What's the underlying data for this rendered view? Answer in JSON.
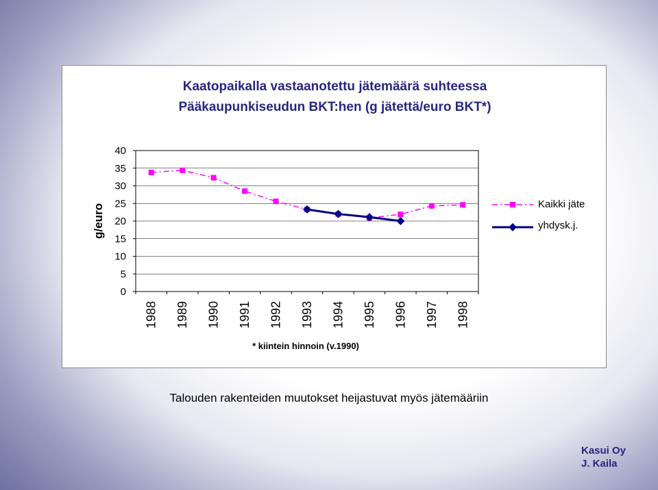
{
  "chart_data": {
    "type": "line",
    "title_line1": "Kaatopaikalla vastaanotettu jätemäärä suhteessa",
    "title_line2": "Pääkaupunkiseudun BKT:hen (g jätettä/euro BKT*)",
    "ylabel": "g/euro",
    "xlabel": "",
    "ylim": [
      0,
      40
    ],
    "yticks": [
      "0",
      "5",
      "10",
      "15",
      "20",
      "25",
      "30",
      "35",
      "40"
    ],
    "categories": [
      "1988",
      "1989",
      "1990",
      "1991",
      "1992",
      "1993",
      "1994",
      "1995",
      "1996",
      "1997",
      "1998"
    ],
    "grid": true,
    "legend_position": "right",
    "series": [
      {
        "name": "Kaikki jäte",
        "color": "#ff00ff",
        "marker": "square",
        "style": "dash-dot",
        "values": [
          33.8,
          34.4,
          32.3,
          28.5,
          25.6,
          23.3,
          22.0,
          20.9,
          21.9,
          24.3,
          24.6
        ]
      },
      {
        "name": "yhdysk.j.",
        "color": "#000080",
        "marker": "diamond",
        "style": "solid",
        "values": [
          null,
          null,
          null,
          null,
          null,
          23.3,
          22.0,
          21.1,
          20.0,
          null,
          null
        ]
      }
    ],
    "footnote": "* kiintein hinnoin (v.1990)"
  },
  "caption": "Talouden rakenteiden muutokset heijastuvat myös jätemääriin",
  "author": {
    "line1": "Kasui Oy",
    "line2": "J. Kaila"
  }
}
